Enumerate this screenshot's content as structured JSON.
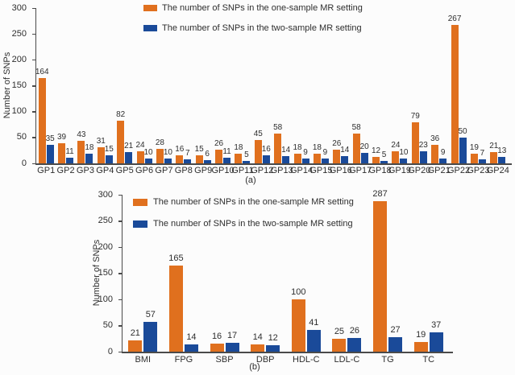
{
  "figure": {
    "background": "#fcfcfc",
    "text_color": "#2e2e2e",
    "axis_color": "#4a4a4a",
    "one_sample_color": "#e0701e",
    "two_sample_color": "#1a4a99"
  },
  "legend": {
    "one_sample_label": "The number of SNPs in the one-sample MR setting",
    "two_sample_label": "The number of SNPs in the two-sample MR setting"
  },
  "chart_data": [
    {
      "id": "a",
      "type": "bar",
      "caption": "(a)",
      "ylabel": "Number of SNPs",
      "ylim": [
        0,
        300
      ],
      "yticks": [
        0,
        50,
        100,
        150,
        200,
        250,
        300
      ],
      "grid": false,
      "legend_position": "top-inside",
      "categories": [
        "GP1",
        "GP2",
        "GP3",
        "GP4",
        "GP5",
        "GP6",
        "GP7",
        "GP8",
        "GP9",
        "GP10",
        "GP11",
        "GP12",
        "GP13",
        "GP14",
        "GP15",
        "GP16",
        "GP17",
        "GP18",
        "GP19",
        "GP20",
        "GP21",
        "GP22",
        "GP23",
        "GP24"
      ],
      "series": [
        {
          "name": "The number of SNPs in the one-sample MR setting",
          "color": "#e0701e",
          "values": [
            164,
            39,
            43,
            31,
            82,
            24,
            28,
            16,
            15,
            26,
            18,
            45,
            58,
            18,
            18,
            26,
            58,
            12,
            24,
            79,
            36,
            267,
            19,
            21
          ]
        },
        {
          "name": "The number of SNPs in the two-sample MR setting",
          "color": "#1a4a99",
          "values": [
            35,
            11,
            18,
            15,
            21,
            10,
            10,
            7,
            6,
            11,
            5,
            16,
            14,
            9,
            9,
            14,
            20,
            5,
            10,
            23,
            9,
            50,
            7,
            13
          ]
        }
      ]
    },
    {
      "id": "b",
      "type": "bar",
      "caption": "(b)",
      "ylabel": "Number of SNPs",
      "ylim": [
        0,
        300
      ],
      "yticks": [
        0,
        50,
        100,
        150,
        200,
        250,
        300
      ],
      "grid": false,
      "legend_position": "top-inside",
      "categories": [
        "BMI",
        "FPG",
        "SBP",
        "DBP",
        "HDL-C",
        "LDL-C",
        "TG",
        "TC"
      ],
      "series": [
        {
          "name": "The number of SNPs in the one-sample MR setting",
          "color": "#e0701e",
          "values": [
            21,
            165,
            16,
            14,
            100,
            25,
            287,
            19
          ]
        },
        {
          "name": "The number of SNPs in the two-sample MR setting",
          "color": "#1a4a99",
          "values": [
            57,
            14,
            17,
            12,
            41,
            26,
            27,
            37
          ]
        }
      ]
    }
  ]
}
